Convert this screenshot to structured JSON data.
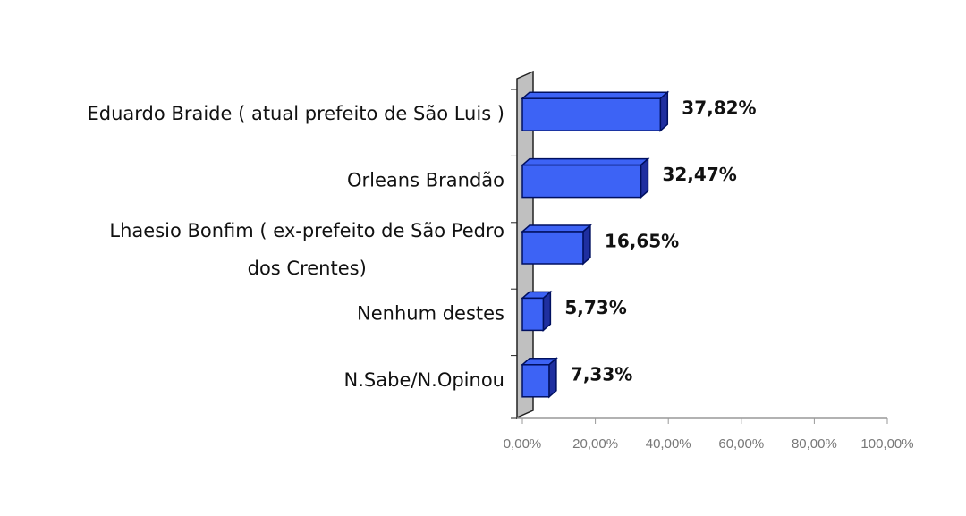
{
  "chart_data": {
    "type": "bar",
    "orientation": "horizontal",
    "categories": [
      "Eduardo Braide ( atual prefeito de São Luis )",
      "Orleans Brandão",
      "Lhaesio Bonfim ( ex-prefeito de São Pedro dos Crentes)",
      "Nenhum destes",
      "N.Sabe/N.Opinou"
    ],
    "values": [
      37.82,
      32.47,
      16.65,
      5.73,
      7.33
    ],
    "value_labels": [
      "37,82%",
      "32,47%",
      "16,65%",
      "5,73%",
      "7,33%"
    ],
    "color": "#3d63f5",
    "xlim": [
      0,
      100
    ],
    "xticks": [
      {
        "value": 0,
        "label": "0,00%"
      },
      {
        "value": 20,
        "label": "20,00%"
      },
      {
        "value": 40,
        "label": "40,00%"
      },
      {
        "value": 60,
        "label": "60,00%"
      },
      {
        "value": 80,
        "label": "80,00%"
      },
      {
        "value": 100,
        "label": "100,00%"
      }
    ]
  }
}
